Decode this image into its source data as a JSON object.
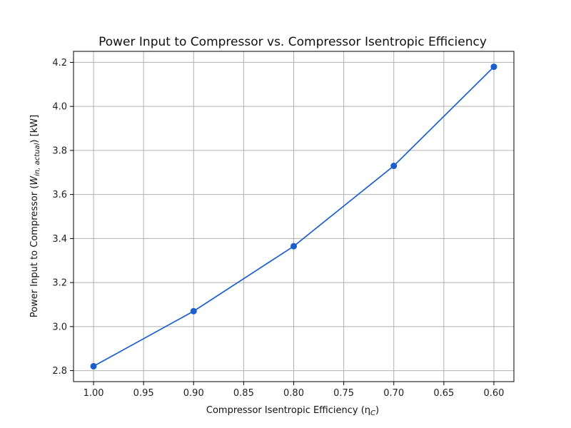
{
  "chart_data": {
    "type": "line",
    "title": "Power Input to Compressor vs. Compressor Isentropic Efficiency",
    "xlabel": "Compressor Isentropic Efficiency (η",
    "xlabel_sub": "C",
    "xlabel_tail": ")",
    "ylabel": "Power Input to Compressor (",
    "ylabel_var": "W",
    "ylabel_sub": "in, actual",
    "ylabel_tail": ") [kW]",
    "x": [
      1.0,
      0.9,
      0.8,
      0.7,
      0.6
    ],
    "y": [
      2.82,
      3.07,
      3.365,
      3.73,
      4.18
    ],
    "xlim": [
      1.02,
      0.58
    ],
    "ylim": [
      2.75,
      4.25
    ],
    "x_ticks": [
      1.0,
      0.95,
      0.9,
      0.85,
      0.8,
      0.75,
      0.7,
      0.65,
      0.6
    ],
    "x_tick_labels": [
      "1.00",
      "0.95",
      "0.90",
      "0.85",
      "0.80",
      "0.75",
      "0.70",
      "0.65",
      "0.60"
    ],
    "y_ticks": [
      2.8,
      3.0,
      3.2,
      3.4,
      3.6,
      3.8,
      4.0,
      4.2
    ],
    "y_tick_labels": [
      "2.8",
      "3.0",
      "3.2",
      "3.4",
      "3.6",
      "3.8",
      "4.0",
      "4.2"
    ],
    "x_axis_reversed": true,
    "grid": true,
    "line_color": "#1a5fcc",
    "marker": "circle"
  }
}
